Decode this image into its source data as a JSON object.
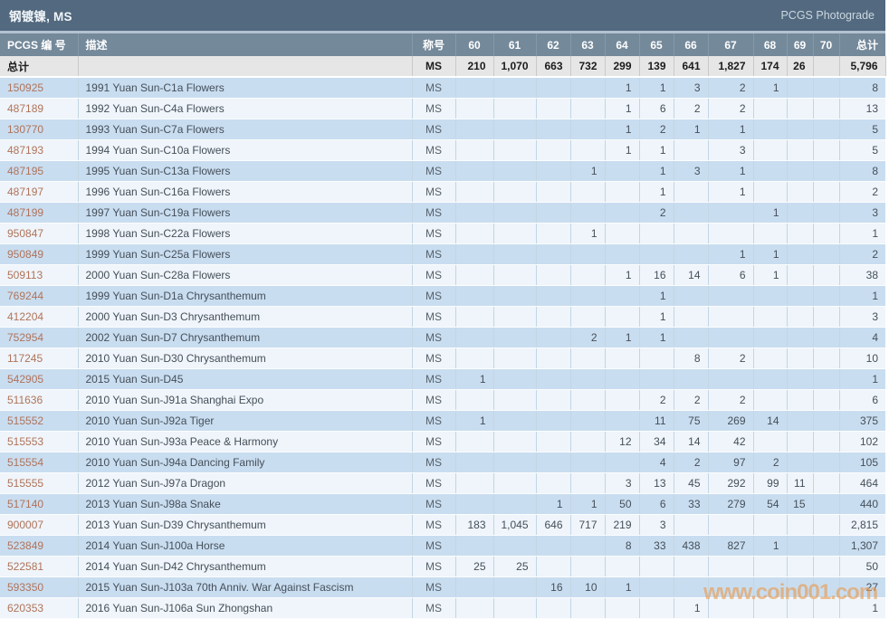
{
  "title_bar": {
    "title": "钢镀镍, MS",
    "link": "PCGS Photograde"
  },
  "table": {
    "headers": {
      "pcgs_no": "PCGS 编 号",
      "desc": "描述",
      "designation": "称号",
      "grades": [
        "60",
        "61",
        "62",
        "63",
        "64",
        "65",
        "66",
        "67",
        "68",
        "69",
        "70"
      ],
      "total": "总计"
    },
    "totals_row": {
      "label": "总计",
      "designation": "MS",
      "grades": [
        "210",
        "1,070",
        "663",
        "732",
        "299",
        "139",
        "641",
        "1,827",
        "174",
        "26",
        ""
      ],
      "total": "5,796"
    },
    "rows": [
      {
        "pcgs_no": "150925",
        "desc": "1991 Yuan Sun-C1a Flowers",
        "designation": "MS",
        "grades": [
          "",
          "",
          "",
          "",
          "1",
          "1",
          "3",
          "2",
          "1",
          "",
          ""
        ],
        "total": "8"
      },
      {
        "pcgs_no": "487189",
        "desc": "1992 Yuan Sun-C4a Flowers",
        "designation": "MS",
        "grades": [
          "",
          "",
          "",
          "",
          "1",
          "6",
          "2",
          "2",
          "",
          "",
          ""
        ],
        "total": "13"
      },
      {
        "pcgs_no": "130770",
        "desc": "1993 Yuan Sun-C7a Flowers",
        "designation": "MS",
        "grades": [
          "",
          "",
          "",
          "",
          "1",
          "2",
          "1",
          "1",
          "",
          "",
          ""
        ],
        "total": "5"
      },
      {
        "pcgs_no": "487193",
        "desc": "1994 Yuan Sun-C10a Flowers",
        "designation": "MS",
        "grades": [
          "",
          "",
          "",
          "",
          "1",
          "1",
          "",
          "3",
          "",
          "",
          ""
        ],
        "total": "5"
      },
      {
        "pcgs_no": "487195",
        "desc": "1995 Yuan Sun-C13a Flowers",
        "designation": "MS",
        "grades": [
          "",
          "",
          "",
          "1",
          "",
          "1",
          "3",
          "1",
          "",
          "",
          ""
        ],
        "total": "8"
      },
      {
        "pcgs_no": "487197",
        "desc": "1996 Yuan Sun-C16a Flowers",
        "designation": "MS",
        "grades": [
          "",
          "",
          "",
          "",
          "",
          "1",
          "",
          "1",
          "",
          "",
          ""
        ],
        "total": "2"
      },
      {
        "pcgs_no": "487199",
        "desc": "1997 Yuan Sun-C19a Flowers",
        "designation": "MS",
        "grades": [
          "",
          "",
          "",
          "",
          "",
          "2",
          "",
          "",
          "1",
          "",
          ""
        ],
        "total": "3"
      },
      {
        "pcgs_no": "950847",
        "desc": "1998 Yuan Sun-C22a Flowers",
        "designation": "MS",
        "grades": [
          "",
          "",
          "",
          "1",
          "",
          "",
          "",
          "",
          "",
          "",
          ""
        ],
        "total": "1"
      },
      {
        "pcgs_no": "950849",
        "desc": "1999 Yuan Sun-C25a Flowers",
        "designation": "MS",
        "grades": [
          "",
          "",
          "",
          "",
          "",
          "",
          "",
          "1",
          "1",
          "",
          ""
        ],
        "total": "2"
      },
      {
        "pcgs_no": "509113",
        "desc": "2000 Yuan Sun-C28a Flowers",
        "designation": "MS",
        "grades": [
          "",
          "",
          "",
          "",
          "1",
          "16",
          "14",
          "6",
          "1",
          "",
          ""
        ],
        "total": "38"
      },
      {
        "pcgs_no": "769244",
        "desc": "1999 Yuan Sun-D1a Chrysanthemum",
        "designation": "MS",
        "grades": [
          "",
          "",
          "",
          "",
          "",
          "1",
          "",
          "",
          "",
          "",
          ""
        ],
        "total": "1"
      },
      {
        "pcgs_no": "412204",
        "desc": "2000 Yuan Sun-D3 Chrysanthemum",
        "designation": "MS",
        "grades": [
          "",
          "",
          "",
          "",
          "",
          "1",
          "",
          "",
          "",
          "",
          ""
        ],
        "total": "3"
      },
      {
        "pcgs_no": "752954",
        "desc": "2002 Yuan Sun-D7 Chrysanthemum",
        "designation": "MS",
        "grades": [
          "",
          "",
          "",
          "2",
          "1",
          "1",
          "",
          "",
          "",
          "",
          ""
        ],
        "total": "4"
      },
      {
        "pcgs_no": "117245",
        "desc": "2010 Yuan Sun-D30 Chrysanthemum",
        "designation": "MS",
        "grades": [
          "",
          "",
          "",
          "",
          "",
          "",
          "8",
          "2",
          "",
          "",
          ""
        ],
        "total": "10"
      },
      {
        "pcgs_no": "542905",
        "desc": "2015 Yuan Sun-D45",
        "designation": "MS",
        "grades": [
          "1",
          "",
          "",
          "",
          "",
          "",
          "",
          "",
          "",
          "",
          ""
        ],
        "total": "1"
      },
      {
        "pcgs_no": "511636",
        "desc": "2010 Yuan Sun-J91a Shanghai Expo",
        "designation": "MS",
        "grades": [
          "",
          "",
          "",
          "",
          "",
          "2",
          "2",
          "2",
          "",
          "",
          ""
        ],
        "total": "6"
      },
      {
        "pcgs_no": "515552",
        "desc": "2010 Yuan Sun-J92a Tiger",
        "designation": "MS",
        "grades": [
          "1",
          "",
          "",
          "",
          "",
          "11",
          "75",
          "269",
          "14",
          "",
          ""
        ],
        "total": "375"
      },
      {
        "pcgs_no": "515553",
        "desc": "2010 Yuan Sun-J93a Peace & Harmony",
        "designation": "MS",
        "grades": [
          "",
          "",
          "",
          "",
          "12",
          "34",
          "14",
          "42",
          "",
          "",
          ""
        ],
        "total": "102"
      },
      {
        "pcgs_no": "515554",
        "desc": "2010 Yuan Sun-J94a Dancing Family",
        "designation": "MS",
        "grades": [
          "",
          "",
          "",
          "",
          "",
          "4",
          "2",
          "97",
          "2",
          "",
          ""
        ],
        "total": "105"
      },
      {
        "pcgs_no": "515555",
        "desc": "2012 Yuan Sun-J97a Dragon",
        "designation": "MS",
        "grades": [
          "",
          "",
          "",
          "",
          "3",
          "13",
          "45",
          "292",
          "99",
          "11",
          ""
        ],
        "total": "464"
      },
      {
        "pcgs_no": "517140",
        "desc": "2013 Yuan Sun-J98a Snake",
        "designation": "MS",
        "grades": [
          "",
          "",
          "1",
          "1",
          "50",
          "6",
          "33",
          "279",
          "54",
          "15",
          ""
        ],
        "total": "440"
      },
      {
        "pcgs_no": "900007",
        "desc": "2013 Yuan Sun-D39 Chrysanthemum",
        "designation": "MS",
        "grades": [
          "183",
          "1,045",
          "646",
          "717",
          "219",
          "3",
          "",
          "",
          "",
          "",
          ""
        ],
        "total": "2,815"
      },
      {
        "pcgs_no": "523849",
        "desc": "2014 Yuan Sun-J100a Horse",
        "designation": "MS",
        "grades": [
          "",
          "",
          "",
          "",
          "8",
          "33",
          "438",
          "827",
          "1",
          "",
          ""
        ],
        "total": "1,307"
      },
      {
        "pcgs_no": "522581",
        "desc": "2014 Yuan Sun-D42 Chrysanthemum",
        "designation": "MS",
        "grades": [
          "25",
          "25",
          "",
          "",
          "",
          "",
          "",
          "",
          "",
          "",
          ""
        ],
        "total": "50"
      },
      {
        "pcgs_no": "593350",
        "desc": "2015 Yuan Sun-J103a 70th Anniv. War Against Fascism",
        "designation": "MS",
        "grades": [
          "",
          "",
          "16",
          "10",
          "1",
          "",
          "",
          "",
          "",
          "",
          ""
        ],
        "total": "27"
      },
      {
        "pcgs_no": "620353",
        "desc": "2016 Yuan Sun-J106a Sun Zhongshan",
        "designation": "MS",
        "grades": [
          "",
          "",
          "",
          "",
          "",
          "",
          "1",
          "",
          "",
          "",
          ""
        ],
        "total": "1"
      }
    ]
  },
  "watermark": "www.coin001.com",
  "colors": {
    "title_bar_bg": "#52697f",
    "header_bg": "#74899a",
    "totals_bg": "#e6e6e6",
    "row_blue": "#c9ddf0",
    "row_white": "#eff5fa",
    "pcgs_link": "#b0735a",
    "watermark": "#e89a4e"
  }
}
